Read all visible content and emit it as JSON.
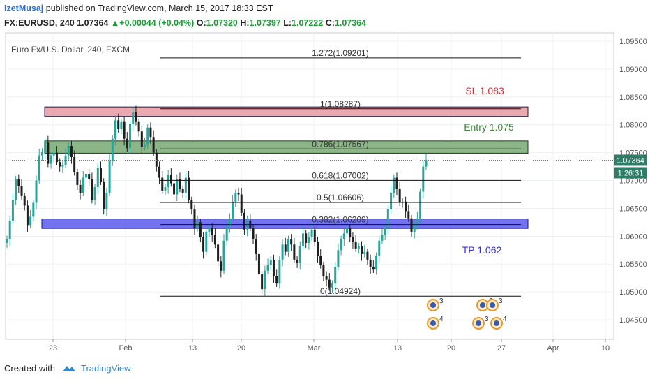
{
  "header": {
    "user": "IzetMusaj",
    "published": "published on TradingView.com, March 15, 2017 18:33 EST",
    "symbol": "FX:EURUSD, 240",
    "last": "1.07364",
    "change": "+0.00044 (+0.04%)",
    "o_label": "O:",
    "o_value": "1.07320",
    "h_label": "H:",
    "h_value": "1.07397",
    "l_label": "L:",
    "l_value": "1.07222",
    "c_label": "C:",
    "c_value": "1.07364"
  },
  "footer": {
    "created_with": "Created with",
    "brand": "TradingView"
  },
  "colors": {
    "up": "#26a69a",
    "down": "#222222",
    "grid": "#eef1f5",
    "axis_text": "#555555",
    "sl_zone": "#e8a0a8",
    "entry_zone": "#7fae7a",
    "tp_zone": "#5b5bf0",
    "sl_text": "#d9303a",
    "entry_text": "#3a8a3a",
    "tp_text": "#3333dd",
    "price_tag": "#2e7d66"
  },
  "chart_data": {
    "type": "candlestick",
    "instrument_label": "Euro Fx/U.S. Dollar, 240, FXCM",
    "ylim": [
      1.0415,
      1.0965
    ],
    "y_ticks": [
      "1.09500",
      "1.09000",
      "1.08500",
      "1.08000",
      "1.07500",
      "1.07000",
      "1.06500",
      "1.06000",
      "1.05500",
      "1.05000",
      "1.04500"
    ],
    "y_tick_values": [
      1.095,
      1.09,
      1.085,
      1.08,
      1.075,
      1.07,
      1.065,
      1.06,
      1.055,
      1.05,
      1.045
    ],
    "x_ticks": [
      "23",
      "Feb",
      "13",
      "20",
      "Mar",
      "13",
      "20",
      "27",
      "Apr",
      "10"
    ],
    "current_price": "1.07364",
    "countdown": "1:26:31",
    "fib_levels": [
      {
        "label": "1.272(1.09201)",
        "price": 1.09201
      },
      {
        "label": "1(1.08287)",
        "price": 1.08287
      },
      {
        "label": "0.786(1.07567)",
        "price": 1.07567
      },
      {
        "label": "0.618(1.07002)",
        "price": 1.07002
      },
      {
        "label": "0.5(1.06606)",
        "price": 1.06606
      },
      {
        "label": "0.382(1.06209)",
        "price": 1.06209
      },
      {
        "label": "0(1.04924)",
        "price": 1.04924
      }
    ],
    "zones": [
      {
        "name": "sl",
        "top": 1.0832,
        "bottom": 1.0815
      },
      {
        "name": "entry",
        "top": 1.0771,
        "bottom": 1.0749
      },
      {
        "name": "tp",
        "top": 1.0631,
        "bottom": 1.0614
      }
    ],
    "annotations": {
      "sl": "SL 1.083",
      "entry": "Entry 1.075",
      "tp": "TP 1.062"
    },
    "event_badges": [
      "3",
      "4",
      "3",
      "3",
      "3",
      "4"
    ],
    "closes": [
      1.0595,
      1.0628,
      1.0665,
      1.0702,
      1.069,
      1.0672,
      1.0655,
      1.062,
      1.0635,
      1.066,
      1.07,
      1.0745,
      1.0752,
      1.0768,
      1.073,
      1.0745,
      1.075,
      1.0733,
      1.0725,
      1.0728,
      1.0745,
      1.0762,
      1.0742,
      1.0715,
      1.0692,
      1.0678,
      1.0705,
      1.0712,
      1.0702,
      1.0665,
      1.0688,
      1.0722,
      1.0698,
      1.0648,
      1.0678,
      1.0735,
      1.0775,
      1.0808,
      1.0792,
      1.0805,
      1.0775,
      1.0758,
      1.0802,
      1.0822,
      1.0805,
      1.0788,
      1.076,
      1.0765,
      1.0795,
      1.0778,
      1.075,
      1.0725,
      1.0705,
      1.0682,
      1.0688,
      1.071,
      1.0695,
      1.0675,
      1.0702,
      1.0685,
      1.0678,
      1.0705,
      1.0665,
      1.0648,
      1.0615,
      1.0625,
      1.0598,
      1.0572,
      1.0608,
      1.0615,
      1.0602,
      1.0585,
      1.0555,
      1.0538,
      1.0592,
      1.0618,
      1.0632,
      1.0662,
      1.0678,
      1.0675,
      1.0642,
      1.0612,
      1.0628,
      1.0615,
      1.0595,
      1.0568,
      1.0532,
      1.0505,
      1.0538,
      1.0548,
      1.0558,
      1.0528,
      1.0515,
      1.0558,
      1.0585,
      1.0572,
      1.0595,
      1.0585,
      1.0558,
      1.0552,
      1.0582,
      1.0605,
      1.0588,
      1.0598,
      1.0612,
      1.059,
      1.0565,
      1.0548,
      1.0528,
      1.0522,
      1.0508,
      1.0515,
      1.0545,
      1.0575,
      1.0595,
      1.0605,
      1.0615,
      1.0598,
      1.059,
      1.0578,
      1.0582,
      1.0568,
      1.0572,
      1.0558,
      1.0545,
      1.054,
      1.0565,
      1.0592,
      1.0602,
      1.0615,
      1.0648,
      1.0678,
      1.0705,
      1.0685,
      1.066,
      1.0662,
      1.0645,
      1.0632,
      1.0608,
      1.0618,
      1.0632,
      1.068,
      1.0725,
      1.07364
    ]
  }
}
